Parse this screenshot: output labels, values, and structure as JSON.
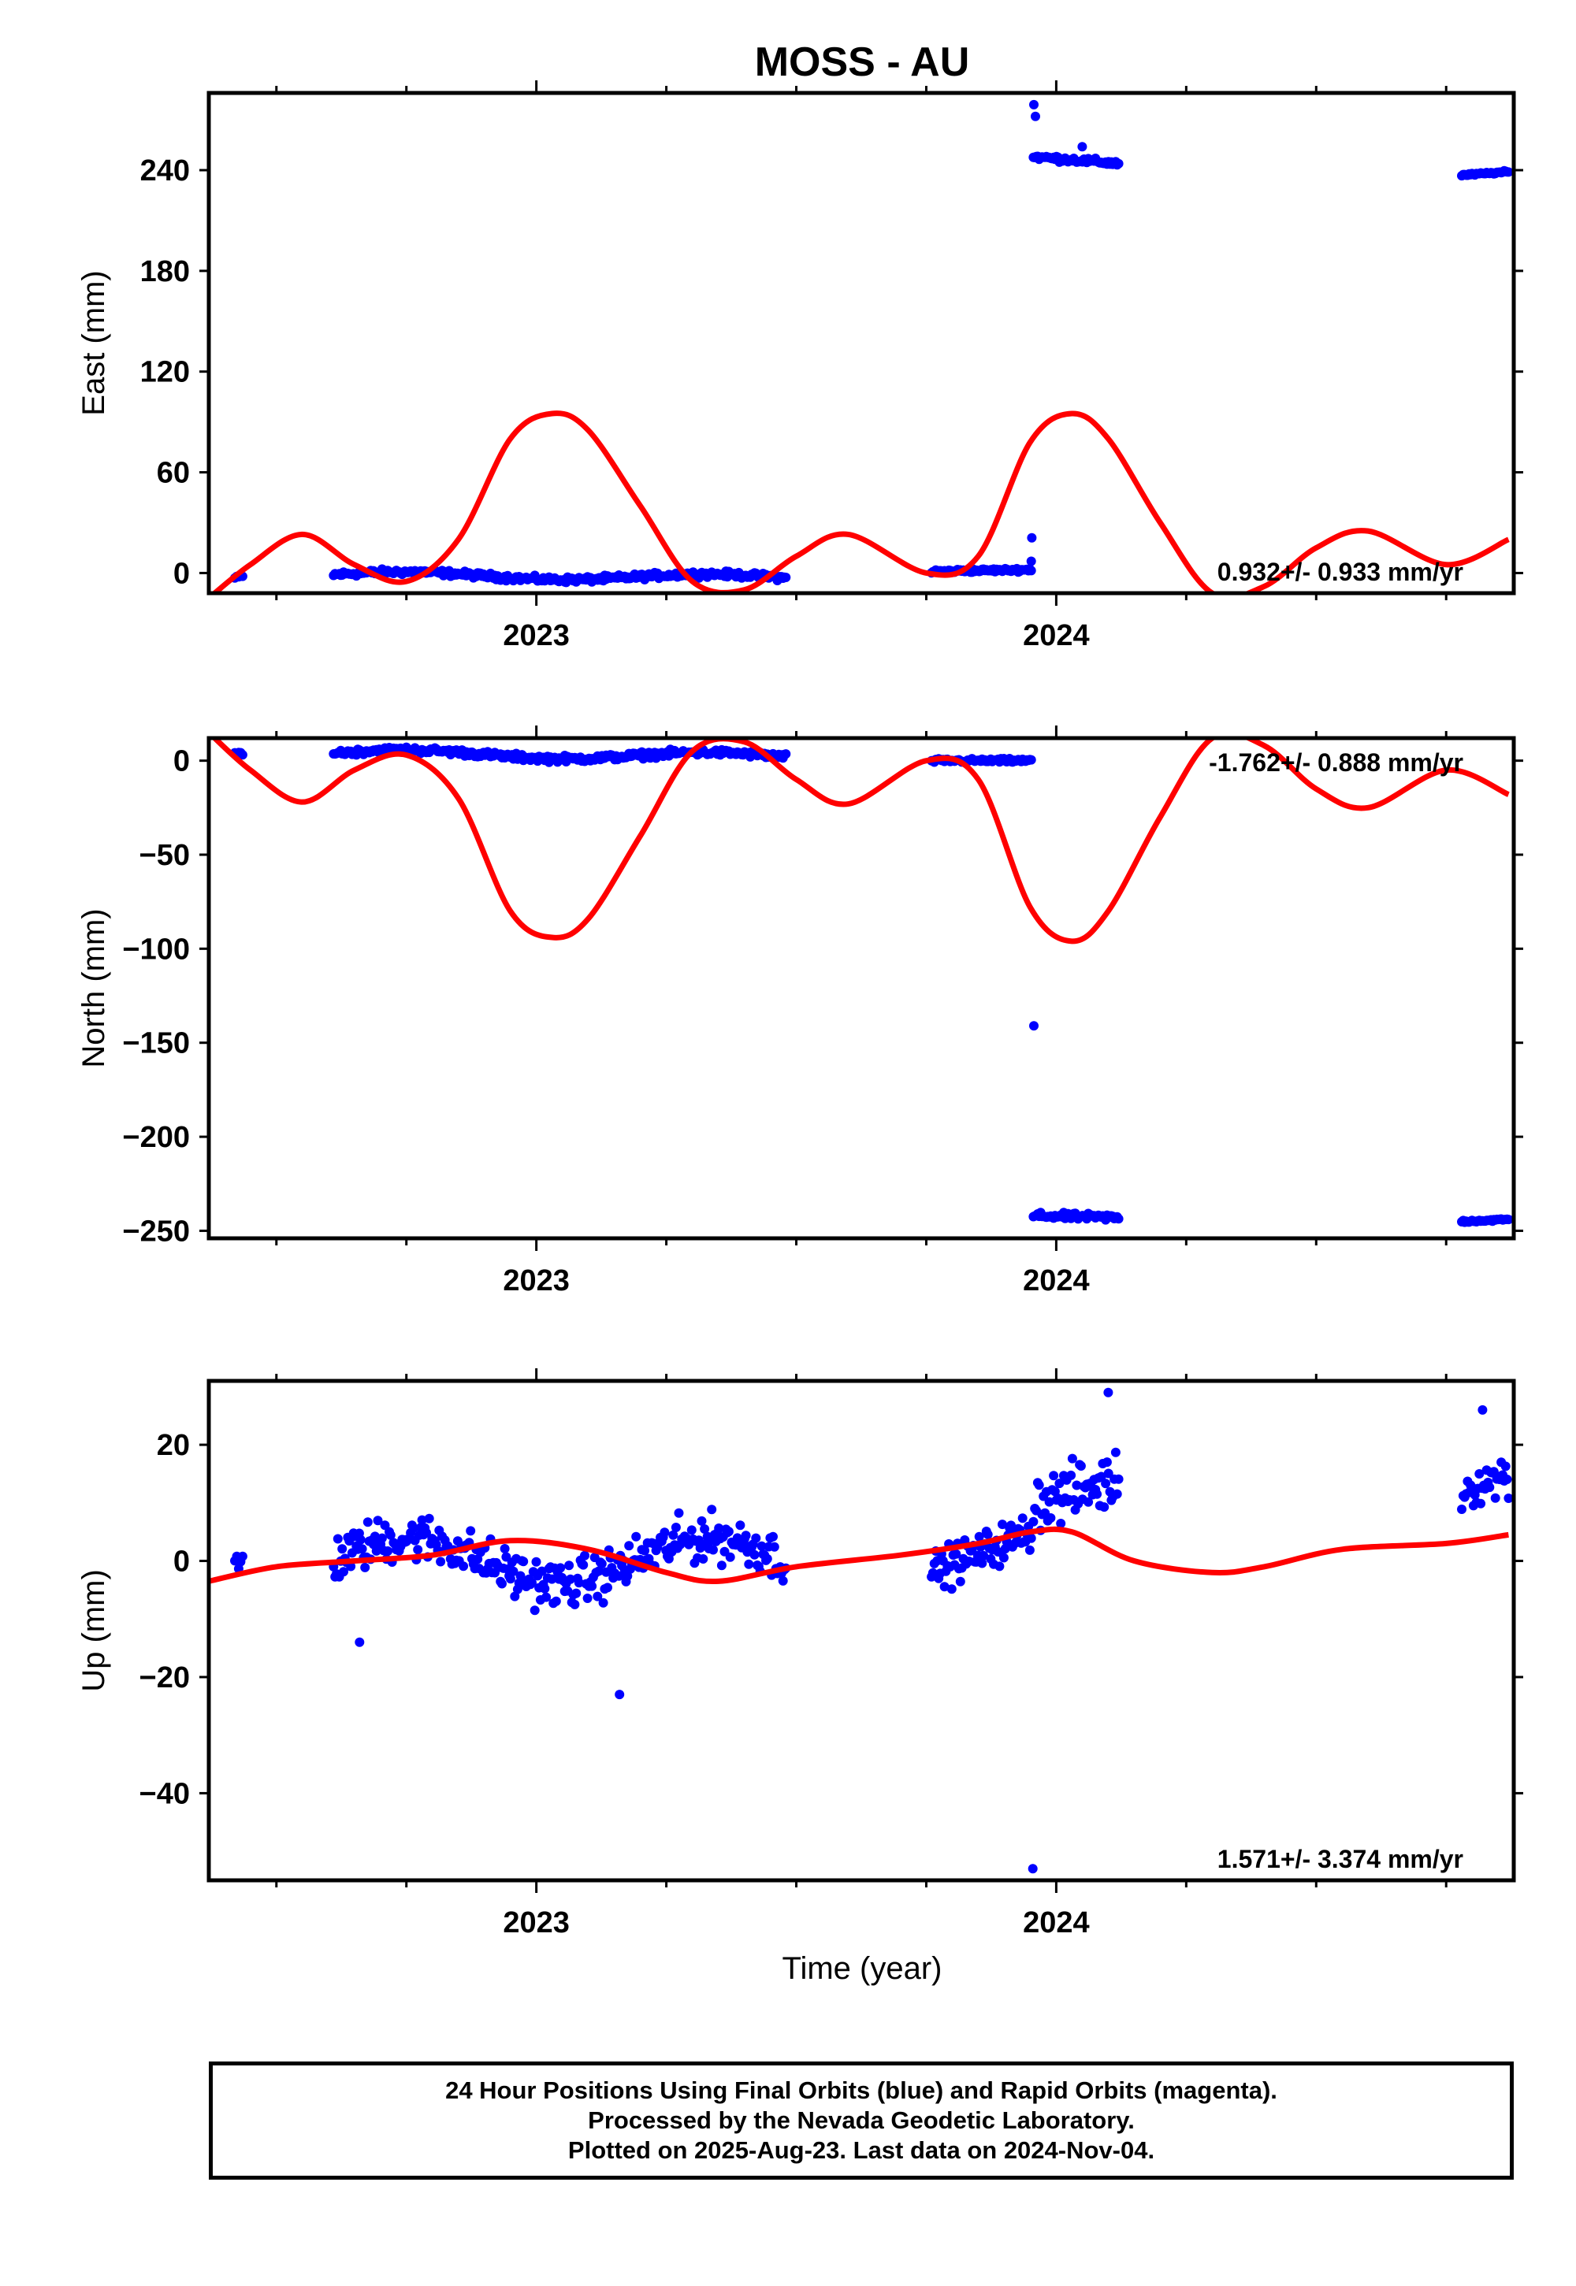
{
  "page": {
    "title": "MOSS - AU"
  },
  "x_axis": {
    "label": "Time (year)",
    "range": [
      2022.37,
      2024.88
    ],
    "major_ticks": [
      2023,
      2024
    ],
    "minor_ticks": [
      2022.5,
      2022.75,
      2023.25,
      2023.5,
      2023.75,
      2024.25,
      2024.5,
      2024.75
    ]
  },
  "colors": {
    "data": "#0000ff",
    "model": "#ff0000",
    "frame": "#000000"
  },
  "footer": {
    "line1": "24 Hour Positions Using Final Orbits (blue) and Rapid Orbits (magenta).",
    "line2": "Processed by the Nevada Geodetic Laboratory.",
    "line3": "Plotted on 2025-Aug-23. Last data on 2024-Nov-04."
  },
  "chart_data": [
    {
      "type": "scatter",
      "panel": "east",
      "ylabel": "East (mm)",
      "ylim": [
        -12,
        286
      ],
      "yticks": [
        0,
        60,
        120,
        180,
        240
      ],
      "rate": "0.932+/- 0.933 mm/yr",
      "rate_position": "bottom-right",
      "segments": [
        {
          "x": [
            2022.42,
            2022.435
          ],
          "y": [
            -3,
            -2
          ],
          "spread": 1.2
        },
        {
          "x": [
            2022.61,
            2023.48
          ],
          "y": [
            -1,
            -3
          ],
          "spread": 2.5,
          "wave": 2
        },
        {
          "x": [
            2023.76,
            2023.952
          ],
          "y": [
            1,
            2
          ],
          "spread": 1.5
        },
        {
          "x": [
            2023.956,
            2024.12
          ],
          "y": [
            248,
            244
          ],
          "spread": 2.5
        },
        {
          "x": [
            2024.78,
            2024.87
          ],
          "y": [
            237,
            239
          ],
          "spread": 1.0
        }
      ],
      "outliers": [
        {
          "x": 2023.952,
          "y": 7
        },
        {
          "x": 2023.953,
          "y": 21
        },
        {
          "x": 2023.957,
          "y": 279
        },
        {
          "x": 2023.96,
          "y": 272
        },
        {
          "x": 2024.05,
          "y": 254
        }
      ],
      "model_curve": {
        "x": [
          2022.37,
          2022.45,
          2022.55,
          2022.65,
          2022.75,
          2022.85,
          2022.95,
          2023.03,
          2023.1,
          2023.2,
          2023.3,
          2023.4,
          2023.5,
          2023.6,
          2023.75,
          2023.85,
          2023.95,
          2024.03,
          2024.1,
          2024.2,
          2024.3,
          2024.4,
          2024.5,
          2024.6,
          2024.75,
          2024.87
        ],
        "y": [
          -15,
          5,
          23,
          5,
          -5,
          20,
          80,
          95,
          85,
          40,
          -5,
          -10,
          10,
          23,
          0,
          10,
          78,
          95,
          80,
          30,
          -12,
          -8,
          15,
          25,
          5,
          20
        ]
      }
    },
    {
      "type": "scatter",
      "panel": "north",
      "ylabel": "North (mm)",
      "ylim": [
        -254,
        12
      ],
      "yticks": [
        0,
        -50,
        -100,
        -150,
        -200,
        -250
      ],
      "rate": "-1.762+/- 0.888 mm/yr",
      "rate_position": "top-right",
      "segments": [
        {
          "x": [
            2022.42,
            2022.435
          ],
          "y": [
            4,
            4
          ],
          "spread": 1.0
        },
        {
          "x": [
            2022.61,
            2023.48
          ],
          "y": [
            4,
            2
          ],
          "spread": 2.5,
          "wave": 2
        },
        {
          "x": [
            2023.76,
            2023.952
          ],
          "y": [
            0,
            0
          ],
          "spread": 1.5
        },
        {
          "x": [
            2023.956,
            2024.12
          ],
          "y": [
            -242,
            -243
          ],
          "spread": 2.5
        },
        {
          "x": [
            2024.78,
            2024.87
          ],
          "y": [
            -245,
            -244
          ],
          "spread": 1.0
        }
      ],
      "outliers": [
        {
          "x": 2023.957,
          "y": -141
        }
      ],
      "model_curve": {
        "x": [
          2022.37,
          2022.45,
          2022.55,
          2022.65,
          2022.75,
          2022.85,
          2022.95,
          2023.03,
          2023.1,
          2023.2,
          2023.3,
          2023.4,
          2023.5,
          2023.6,
          2023.75,
          2023.85,
          2023.95,
          2024.03,
          2024.1,
          2024.2,
          2024.3,
          2024.4,
          2024.5,
          2024.6,
          2024.75,
          2024.87
        ],
        "y": [
          15,
          -5,
          -22,
          -5,
          3,
          -20,
          -80,
          -94,
          -84,
          -40,
          5,
          10,
          -10,
          -23,
          0,
          -10,
          -78,
          -96,
          -80,
          -30,
          12,
          8,
          -15,
          -25,
          -5,
          -18
        ]
      }
    },
    {
      "type": "scatter",
      "panel": "up",
      "ylabel": "Up (mm)",
      "ylim": [
        -55,
        31
      ],
      "yticks": [
        20,
        0,
        -20,
        -40
      ],
      "rate": "1.571+/- 3.374 mm/yr",
      "rate_position": "bottom-right",
      "segments": [
        {
          "x": [
            2022.42,
            2022.435
          ],
          "y": [
            0,
            0
          ],
          "spread": 3.0
        },
        {
          "x": [
            2022.61,
            2023.48
          ],
          "y": [
            0,
            0
          ],
          "spread": 6.0,
          "wave": 4
        },
        {
          "x": [
            2023.76,
            2023.952
          ],
          "y": [
            -2,
            5
          ],
          "spread": 5.0
        },
        {
          "x": [
            2023.956,
            2024.12
          ],
          "y": [
            10,
            14
          ],
          "spread": 7.0
        },
        {
          "x": [
            2024.78,
            2024.87
          ],
          "y": [
            12,
            15
          ],
          "spread": 5.0
        }
      ],
      "outliers": [
        {
          "x": 2023.955,
          "y": -53
        },
        {
          "x": 2024.1,
          "y": 29
        },
        {
          "x": 2024.82,
          "y": 26
        },
        {
          "x": 2023.16,
          "y": -23
        },
        {
          "x": 2022.66,
          "y": -14
        }
      ],
      "model_curve": {
        "x": [
          2022.37,
          2022.5,
          2022.65,
          2022.8,
          2022.95,
          2023.1,
          2023.25,
          2023.35,
          2023.5,
          2023.7,
          2023.85,
          2023.95,
          2024.03,
          2024.15,
          2024.3,
          2024.4,
          2024.55,
          2024.75,
          2024.87
        ],
        "y": [
          -3.5,
          -1,
          0,
          1,
          3.5,
          2,
          -2,
          -3.5,
          -1,
          1,
          3,
          5,
          5,
          0,
          -2,
          -1,
          2,
          3,
          4.5
        ]
      }
    }
  ]
}
